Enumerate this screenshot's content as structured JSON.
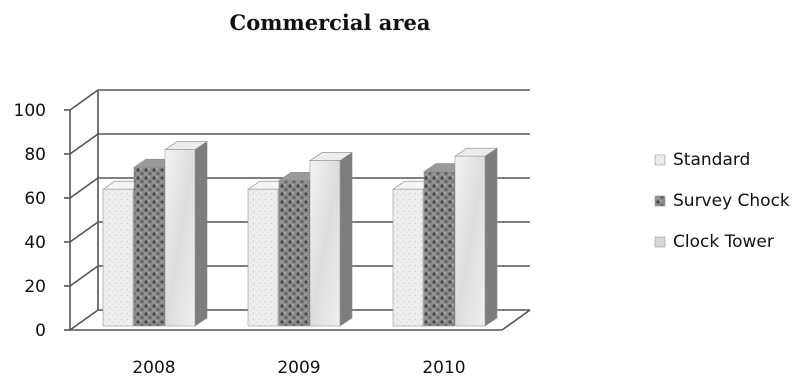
{
  "chart_data": {
    "type": "bar",
    "title": "Commercial area",
    "categories": [
      "2008",
      "2009",
      "2010"
    ],
    "series": [
      {
        "name": "Standard",
        "values": [
          64,
          64,
          64
        ],
        "color": "#ececec"
      },
      {
        "name": "Survey Chock",
        "values": [
          74,
          68,
          72
        ],
        "color": "#6f6f6f"
      },
      {
        "name": "Clock Tower",
        "values": [
          82,
          77,
          79
        ],
        "color": "#dcdcdc"
      }
    ],
    "yticks": [
      "0",
      "20",
      "40",
      "60",
      "80",
      "100"
    ],
    "ylim": [
      0,
      100
    ],
    "legend": "right",
    "grid": true
  }
}
